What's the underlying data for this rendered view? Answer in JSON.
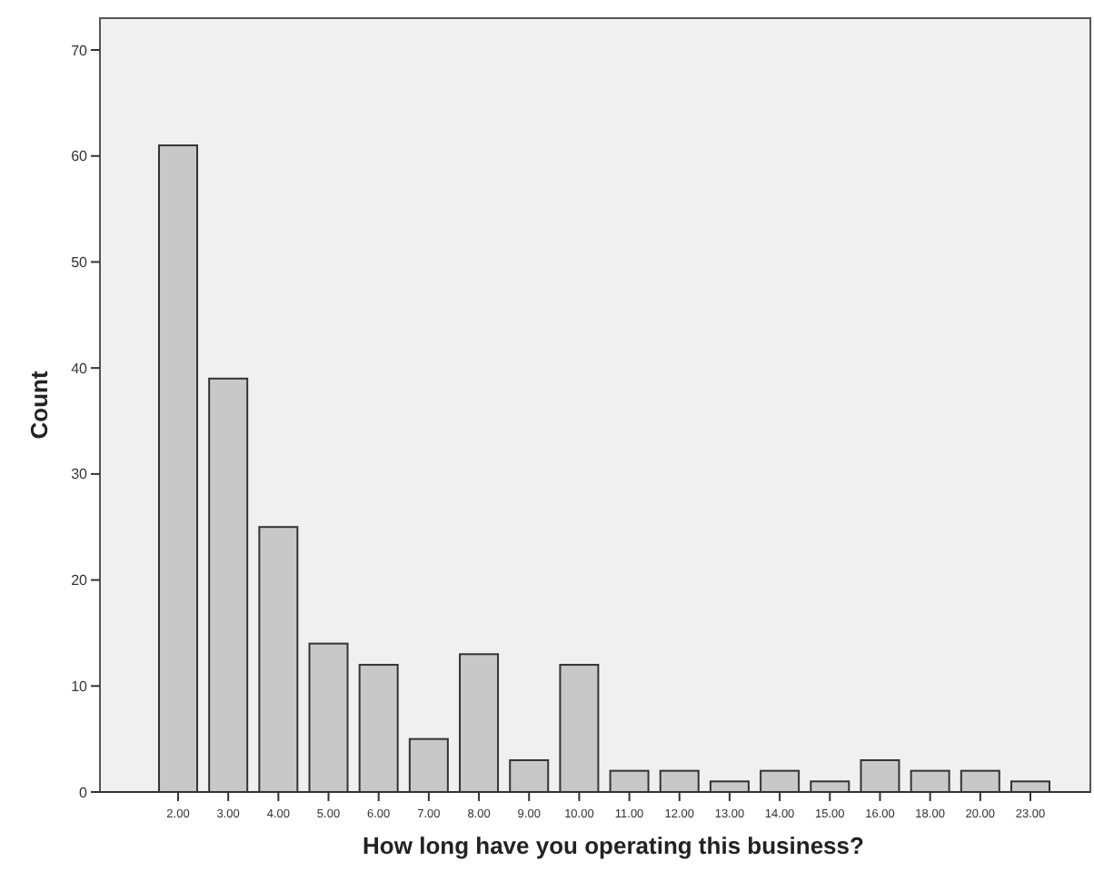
{
  "chart_data": {
    "type": "bar",
    "xlabel": "How long have you operating this business?",
    "ylabel": "Count",
    "categories": [
      "2.00",
      "3.00",
      "4.00",
      "5.00",
      "6.00",
      "7.00",
      "8.00",
      "9.00",
      "10.00",
      "11.00",
      "12.00",
      "13.00",
      "14.00",
      "15.00",
      "16.00",
      "18.00",
      "20.00",
      "23.00"
    ],
    "values": [
      61,
      39,
      25,
      14,
      12,
      5,
      13,
      3,
      12,
      2,
      2,
      1,
      2,
      1,
      3,
      2,
      2,
      1
    ],
    "color": "#c8c8c8",
    "ylim": [
      0,
      73
    ],
    "yticks": [
      0,
      10,
      20,
      30,
      40,
      50,
      60,
      70
    ],
    "grid": false
  }
}
